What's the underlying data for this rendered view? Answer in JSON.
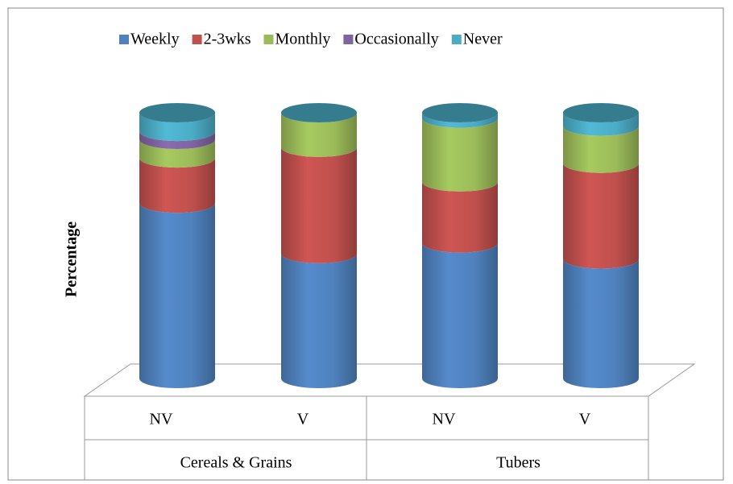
{
  "chart_data": {
    "type": "stacked-cylinder",
    "y_label": "Percentage",
    "categories": [
      "NV",
      "V",
      "NV",
      "V"
    ],
    "groups": [
      "Cereals & Grains",
      "Tubers"
    ],
    "ylim": [
      0,
      100
    ],
    "legend": "top",
    "series": [
      {
        "name": "Weekly",
        "color": "#4f81bd",
        "values": [
          66,
          47,
          51,
          45
        ]
      },
      {
        "name": "2-3wks",
        "color": "#c0504d",
        "values": [
          17,
          40,
          23,
          36
        ]
      },
      {
        "name": "Monthly",
        "color": "#9bbb59",
        "values": [
          7,
          13,
          24,
          14
        ]
      },
      {
        "name": "Occasionally",
        "color": "#8064a2",
        "values": [
          3,
          0,
          0,
          0
        ]
      },
      {
        "name": "Never",
        "color": "#4bacc6",
        "values": [
          7,
          0,
          2,
          5
        ]
      }
    ]
  }
}
